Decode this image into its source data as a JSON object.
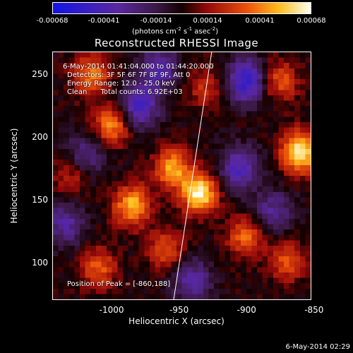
{
  "chart_data": {
    "type": "heatmap",
    "title": "Reconstructed RHESSI Image",
    "xlabel": "Heliocentric X (arcsec)",
    "ylabel": "Heliocentric Y (arcsec)",
    "xlim": [
      -1044,
      -852
    ],
    "ylim": [
      70,
      268
    ],
    "xticks": [
      -1000,
      -950,
      -900,
      -850
    ],
    "yticks": [
      100,
      150,
      200,
      250
    ],
    "colorbar": {
      "min": -0.00068,
      "max": 0.00068,
      "tick_labels": [
        "-0.00068",
        "-0.00041",
        "-0.00014",
        "0.00014",
        "0.00041",
        "0.00068"
      ],
      "units_main": "(photons cm",
      "units_exp1": "-2",
      "units_mid": " s",
      "units_exp2": "-1",
      "units_end": " asec",
      "units_exp3": "-2",
      "units_close": ")"
    },
    "info_lines": [
      "6-May-2014 01:41:04.000 to 01:44:20.000",
      "Detectors: 3F 5F 6F 7F 8F 9F, Att 0",
      "Energy Range: 12.0 - 25.0 keV",
      "Clean      Total counts: 6.92E+03"
    ],
    "peak_label": "Position of Peak = [-860,188]",
    "peak_position": [
      -860,
      188
    ],
    "sources": [
      {
        "x": -860,
        "y": 188,
        "amp": 1.0
      },
      {
        "x": -935,
        "y": 155,
        "amp": 0.95
      },
      {
        "x": -955,
        "y": 175,
        "amp": 0.7
      },
      {
        "x": -985,
        "y": 145,
        "amp": 0.75
      },
      {
        "x": -1000,
        "y": 210,
        "amp": 0.65
      },
      {
        "x": -1015,
        "y": 250,
        "amp": 0.6
      },
      {
        "x": -900,
        "y": 120,
        "amp": 0.55
      },
      {
        "x": -1010,
        "y": 95,
        "amp": 0.5
      },
      {
        "x": -870,
        "y": 100,
        "amp": 0.45
      },
      {
        "x": -875,
        "y": 245,
        "amp": 0.5
      },
      {
        "x": -930,
        "y": 240,
        "amp": 0.35
      },
      {
        "x": -960,
        "y": 110,
        "amp": 0.45
      },
      {
        "x": -1030,
        "y": 170,
        "amp": 0.35
      }
    ],
    "negatives": [
      {
        "x": -980,
        "y": 225,
        "amp": 0.7
      },
      {
        "x": -900,
        "y": 245,
        "amp": 0.8
      },
      {
        "x": -905,
        "y": 175,
        "amp": 0.6
      },
      {
        "x": -965,
        "y": 255,
        "amp": 0.55
      },
      {
        "x": -1035,
        "y": 130,
        "amp": 0.5
      },
      {
        "x": -940,
        "y": 85,
        "amp": 0.5
      },
      {
        "x": -880,
        "y": 140,
        "amp": 0.45
      },
      {
        "x": -1020,
        "y": 185,
        "amp": 0.45
      }
    ]
  },
  "footer": {
    "timestamp": "6-May-2014 02:29"
  }
}
